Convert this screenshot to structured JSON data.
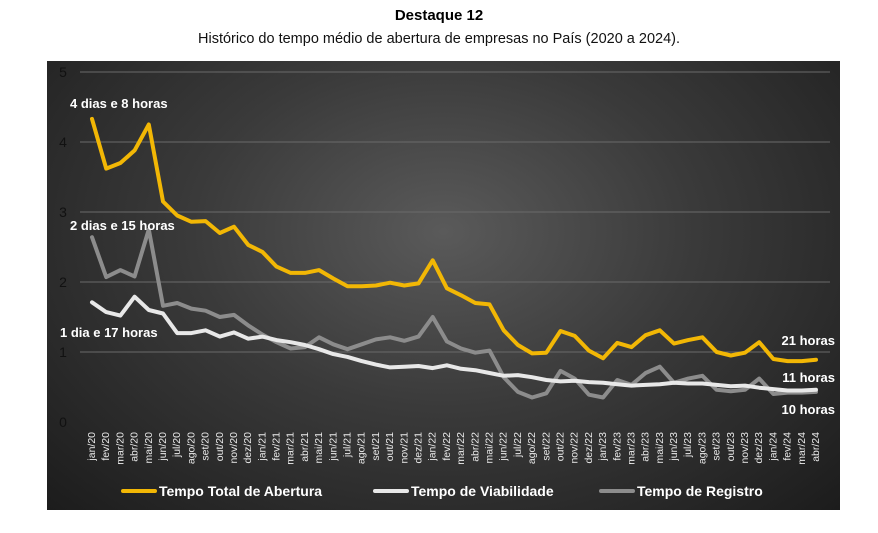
{
  "header": {
    "title": "Destaque 12",
    "subtitle": "Histórico do tempo médio de abertura de empresas no País (2020 a 2024)."
  },
  "chart_data": {
    "type": "line",
    "title": "Destaque 12",
    "subtitle": "Histórico do tempo médio de abertura de empresas no País (2020 a 2024).",
    "xlabel": "",
    "ylabel": "",
    "ylim": [
      0,
      5
    ],
    "yticks": [
      "0",
      "1",
      "2",
      "3",
      "4",
      "5"
    ],
    "grid": true,
    "legend_position": "bottom",
    "categories": [
      "jan/20",
      "fev/20",
      "mar/20",
      "abr/20",
      "mai/20",
      "jun/20",
      "jul/20",
      "ago/20",
      "set/20",
      "out/20",
      "nov/20",
      "dez/20",
      "jan/21",
      "fev/21",
      "mar/21",
      "abr/21",
      "mai/21",
      "jun/21",
      "jul/21",
      "ago/21",
      "set/21",
      "out/21",
      "nov/21",
      "dez/21",
      "jan/22",
      "fev/22",
      "mar/22",
      "abr/22",
      "mai/22",
      "jun/22",
      "jul/22",
      "ago/22",
      "set/22",
      "out/22",
      "nov/22",
      "dez/22",
      "jan/23",
      "fev/23",
      "mar/23",
      "abr/23",
      "mai/23",
      "jun/23",
      "jul/23",
      "ago/23",
      "set/23",
      "out/23",
      "nov/23",
      "dez/23",
      "jan/24",
      "fev/24",
      "mar/24",
      "abr/24"
    ],
    "series": [
      {
        "name": "Tempo Total de Abertura",
        "color": "#F2B705",
        "values": [
          4.33,
          3.62,
          3.7,
          3.88,
          4.25,
          3.15,
          2.95,
          2.86,
          2.87,
          2.7,
          2.79,
          2.53,
          2.43,
          2.22,
          2.13,
          2.13,
          2.17,
          2.05,
          1.94,
          1.94,
          1.95,
          1.99,
          1.95,
          1.98,
          2.31,
          1.91,
          1.81,
          1.7,
          1.68,
          1.31,
          1.1,
          0.98,
          0.99,
          1.3,
          1.23,
          1.02,
          0.91,
          1.13,
          1.07,
          1.24,
          1.31,
          1.12,
          1.17,
          1.21,
          1.0,
          0.95,
          0.99,
          1.14,
          0.9,
          0.87,
          0.87,
          0.89
        ]
      },
      {
        "name": "Tempo de Viabilidade",
        "color": "#E8E8E8",
        "values": [
          1.71,
          1.57,
          1.52,
          1.79,
          1.6,
          1.55,
          1.27,
          1.27,
          1.31,
          1.22,
          1.28,
          1.19,
          1.22,
          1.17,
          1.14,
          1.1,
          1.04,
          0.97,
          0.93,
          0.87,
          0.82,
          0.78,
          0.79,
          0.8,
          0.77,
          0.81,
          0.76,
          0.74,
          0.7,
          0.66,
          0.67,
          0.64,
          0.6,
          0.58,
          0.59,
          0.57,
          0.56,
          0.54,
          0.52,
          0.53,
          0.54,
          0.56,
          0.55,
          0.55,
          0.53,
          0.51,
          0.52,
          0.49,
          0.47,
          0.45,
          0.45,
          0.46
        ]
      },
      {
        "name": "Tempo de Registro",
        "color": "#8C8C8C",
        "values": [
          2.64,
          2.07,
          2.17,
          2.08,
          2.75,
          1.66,
          1.7,
          1.62,
          1.59,
          1.5,
          1.53,
          1.38,
          1.25,
          1.14,
          1.05,
          1.07,
          1.21,
          1.11,
          1.04,
          1.11,
          1.18,
          1.21,
          1.16,
          1.22,
          1.5,
          1.15,
          1.05,
          0.99,
          1.02,
          0.64,
          0.43,
          0.35,
          0.41,
          0.73,
          0.62,
          0.39,
          0.35,
          0.6,
          0.53,
          0.7,
          0.79,
          0.56,
          0.62,
          0.66,
          0.46,
          0.44,
          0.46,
          0.62,
          0.4,
          0.42,
          0.42,
          0.43
        ]
      }
    ],
    "annotations": [
      {
        "text": "4 dias e 8 horas",
        "series": "Tempo Total de Abertura",
        "index": 0
      },
      {
        "text": "2 dias e 15 horas",
        "series": "Tempo de Registro",
        "index": 0
      },
      {
        "text": "1 dia e 17 horas",
        "series": "Tempo de Viabilidade",
        "index": 0
      },
      {
        "text": "21 horas",
        "series": "Tempo Total de Abertura",
        "index": 51
      },
      {
        "text": "11 horas",
        "series": "Tempo de Viabilidade",
        "index": 51
      },
      {
        "text": "10 horas",
        "series": "Tempo de Registro",
        "index": 51
      }
    ]
  }
}
